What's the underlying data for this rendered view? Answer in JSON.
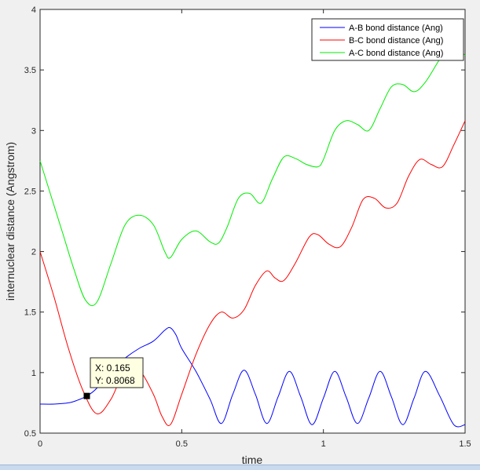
{
  "chart_data": {
    "type": "line",
    "title": "",
    "xlabel": "time",
    "ylabel": "internuclear distance (Angstrom)",
    "xlim": [
      0,
      1.5
    ],
    "ylim": [
      0.5,
      4
    ],
    "xticks": [
      0,
      0.5,
      1,
      1.5
    ],
    "xtick_labels": [
      "0",
      "0.5",
      "1",
      "1.5"
    ],
    "yticks": [
      0.5,
      1,
      1.5,
      2,
      2.5,
      3,
      3.5,
      4
    ],
    "ytick_labels": [
      "0.5",
      "1",
      "1.5",
      "2",
      "2.5",
      "3",
      "3.5",
      "4"
    ],
    "grid": false,
    "legend_position": "top-right",
    "series": [
      {
        "name": "A-B bond distance (Ang)",
        "color": "#0000ff",
        "x": [
          0,
          0.05,
          0.1,
          0.13,
          0.165,
          0.2,
          0.25,
          0.3,
          0.35,
          0.4,
          0.44,
          0.46,
          0.48,
          0.5,
          0.55,
          0.6,
          0.64,
          0.68,
          0.72,
          0.76,
          0.8,
          0.84,
          0.88,
          0.92,
          0.96,
          1.0,
          1.04,
          1.08,
          1.12,
          1.16,
          1.2,
          1.24,
          1.28,
          1.32,
          1.36,
          1.41,
          1.46,
          1.5
        ],
        "y": [
          0.74,
          0.74,
          0.75,
          0.77,
          0.8068,
          0.87,
          1.02,
          1.12,
          1.2,
          1.26,
          1.35,
          1.37,
          1.31,
          1.2,
          1.01,
          0.78,
          0.58,
          0.82,
          1.02,
          0.82,
          0.58,
          0.8,
          1.01,
          0.8,
          0.57,
          0.79,
          1.01,
          0.8,
          0.58,
          0.79,
          1.01,
          0.8,
          0.57,
          0.79,
          1.01,
          0.81,
          0.57,
          0.57
        ]
      },
      {
        "name": "B-C bond distance (Ang)",
        "color": "#ff0000",
        "x": [
          0,
          0.05,
          0.1,
          0.15,
          0.2,
          0.25,
          0.3,
          0.35,
          0.4,
          0.43,
          0.46,
          0.5,
          0.55,
          0.6,
          0.64,
          0.68,
          0.72,
          0.76,
          0.8,
          0.83,
          0.86,
          0.9,
          0.95,
          0.98,
          1.02,
          1.06,
          1.1,
          1.14,
          1.18,
          1.22,
          1.26,
          1.3,
          1.34,
          1.38,
          1.42,
          1.46,
          1.5
        ],
        "y": [
          2.0,
          1.62,
          1.2,
          0.86,
          0.66,
          0.78,
          1.02,
          1.02,
          0.82,
          0.64,
          0.57,
          0.82,
          1.15,
          1.4,
          1.5,
          1.45,
          1.52,
          1.72,
          1.84,
          1.78,
          1.76,
          1.9,
          2.12,
          2.14,
          2.06,
          2.04,
          2.2,
          2.43,
          2.44,
          2.36,
          2.4,
          2.62,
          2.76,
          2.72,
          2.7,
          2.88,
          3.08
        ]
      },
      {
        "name": "A-C bond distance (Ang)",
        "color": "#00ee00",
        "x": [
          0,
          0.04,
          0.08,
          0.12,
          0.16,
          0.2,
          0.25,
          0.3,
          0.35,
          0.4,
          0.44,
          0.46,
          0.5,
          0.55,
          0.6,
          0.63,
          0.66,
          0.7,
          0.74,
          0.78,
          0.82,
          0.86,
          0.9,
          0.94,
          0.98,
          1.0,
          1.04,
          1.08,
          1.12,
          1.16,
          1.2,
          1.24,
          1.28,
          1.32,
          1.36,
          1.42,
          1.46,
          1.5
        ],
        "y": [
          2.75,
          2.45,
          2.15,
          1.85,
          1.6,
          1.58,
          1.9,
          2.22,
          2.3,
          2.22,
          2.0,
          1.95,
          2.1,
          2.17,
          2.08,
          2.07,
          2.2,
          2.44,
          2.48,
          2.4,
          2.6,
          2.78,
          2.77,
          2.72,
          2.7,
          2.76,
          3.0,
          3.08,
          3.05,
          3.0,
          3.18,
          3.36,
          3.38,
          3.32,
          3.4,
          3.62,
          3.7,
          3.62
        ]
      }
    ],
    "datatip": {
      "x": 0.165,
      "y": 0.8068,
      "x_label": "X: 0.165",
      "y_label": "Y: 0.8068"
    }
  }
}
